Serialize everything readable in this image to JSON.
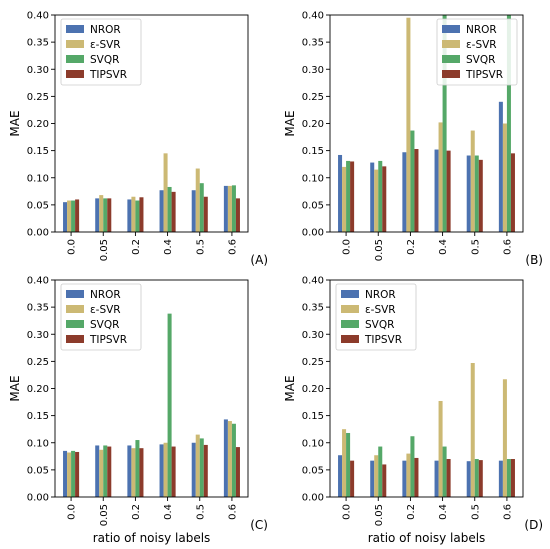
{
  "chart_data": [
    {
      "type": "bar",
      "panel_tag": "(A)",
      "categories": [
        "0.0",
        "0.05",
        "0.2",
        "0.4",
        "0.5",
        "0.6"
      ],
      "ylabel": "MAE",
      "xlabel": "",
      "ylim": [
        0,
        0.4
      ],
      "yticks": [
        "0.00",
        "0.05",
        "0.10",
        "0.15",
        "0.20",
        "0.25",
        "0.30",
        "0.35",
        "0.40"
      ],
      "legend_position": "top-left",
      "series": [
        {
          "name": "NROR",
          "color": "#4c72b0",
          "values": [
            0.055,
            0.062,
            0.06,
            0.077,
            0.077,
            0.085
          ]
        },
        {
          "name": "ε-SVR",
          "color": "#ccb974",
          "values": [
            0.058,
            0.068,
            0.065,
            0.145,
            0.117,
            0.085
          ]
        },
        {
          "name": "SVQR",
          "color": "#55a868",
          "values": [
            0.058,
            0.062,
            0.058,
            0.083,
            0.09,
            0.086
          ]
        },
        {
          "name": "TIPSVR",
          "color": "#8c3b2b",
          "values": [
            0.06,
            0.062,
            0.064,
            0.074,
            0.065,
            0.062
          ]
        }
      ]
    },
    {
      "type": "bar",
      "panel_tag": "(B)",
      "categories": [
        "0.0",
        "0.05",
        "0.2",
        "0.4",
        "0.5",
        "0.6"
      ],
      "ylabel": "MAE",
      "xlabel": "",
      "ylim": [
        0,
        0.4
      ],
      "yticks": [
        "0.00",
        "0.05",
        "0.10",
        "0.15",
        "0.20",
        "0.25",
        "0.30",
        "0.35",
        "0.40"
      ],
      "legend_position": "top-right",
      "series": [
        {
          "name": "NROR",
          "color": "#4c72b0",
          "values": [
            0.142,
            0.128,
            0.147,
            0.152,
            0.141,
            0.24
          ]
        },
        {
          "name": "ε-SVR",
          "color": "#ccb974",
          "values": [
            0.12,
            0.115,
            0.395,
            0.202,
            0.187,
            0.2
          ]
        },
        {
          "name": "SVQR",
          "color": "#55a868",
          "values": [
            0.131,
            0.131,
            0.187,
            0.4,
            0.141,
            0.4
          ]
        },
        {
          "name": "TIPSVR",
          "color": "#8c3b2b",
          "values": [
            0.13,
            0.121,
            0.153,
            0.15,
            0.133,
            0.145
          ]
        }
      ]
    },
    {
      "type": "bar",
      "panel_tag": "(C)",
      "categories": [
        "0.0",
        "0.05",
        "0.2",
        "0.4",
        "0.5",
        "0.6"
      ],
      "ylabel": "MAE",
      "xlabel": "ratio of noisy labels",
      "ylim": [
        0,
        0.4
      ],
      "yticks": [
        "0.00",
        "0.05",
        "0.10",
        "0.15",
        "0.20",
        "0.25",
        "0.30",
        "0.35",
        "0.40"
      ],
      "legend_position": "top-left",
      "series": [
        {
          "name": "NROR",
          "color": "#4c72b0",
          "values": [
            0.085,
            0.095,
            0.095,
            0.097,
            0.1,
            0.143
          ]
        },
        {
          "name": "ε-SVR",
          "color": "#ccb974",
          "values": [
            0.082,
            0.087,
            0.09,
            0.1,
            0.115,
            0.14
          ]
        },
        {
          "name": "SVQR",
          "color": "#55a868",
          "values": [
            0.085,
            0.095,
            0.105,
            0.338,
            0.108,
            0.135
          ]
        },
        {
          "name": "TIPSVR",
          "color": "#8c3b2b",
          "values": [
            0.083,
            0.093,
            0.09,
            0.093,
            0.096,
            0.092
          ]
        }
      ]
    },
    {
      "type": "bar",
      "panel_tag": "(D)",
      "categories": [
        "0.0",
        "0.05",
        "0.2",
        "0.4",
        "0.5",
        "0.6"
      ],
      "ylabel": "MAE",
      "xlabel": "ratio of noisy labels",
      "ylim": [
        0,
        0.4
      ],
      "yticks": [
        "0.00",
        "0.05",
        "0.10",
        "0.15",
        "0.20",
        "0.25",
        "0.30",
        "0.35",
        "0.40"
      ],
      "legend_position": "top-left",
      "series": [
        {
          "name": "NROR",
          "color": "#4c72b0",
          "values": [
            0.077,
            0.067,
            0.067,
            0.067,
            0.066,
            0.067
          ]
        },
        {
          "name": "ε-SVR",
          "color": "#ccb974",
          "values": [
            0.125,
            0.077,
            0.08,
            0.177,
            0.247,
            0.217
          ]
        },
        {
          "name": "SVQR",
          "color": "#55a868",
          "values": [
            0.118,
            0.093,
            0.112,
            0.093,
            0.07,
            0.07
          ]
        },
        {
          "name": "TIPSVR",
          "color": "#8c3b2b",
          "values": [
            0.067,
            0.06,
            0.072,
            0.07,
            0.068,
            0.07
          ]
        }
      ]
    }
  ]
}
